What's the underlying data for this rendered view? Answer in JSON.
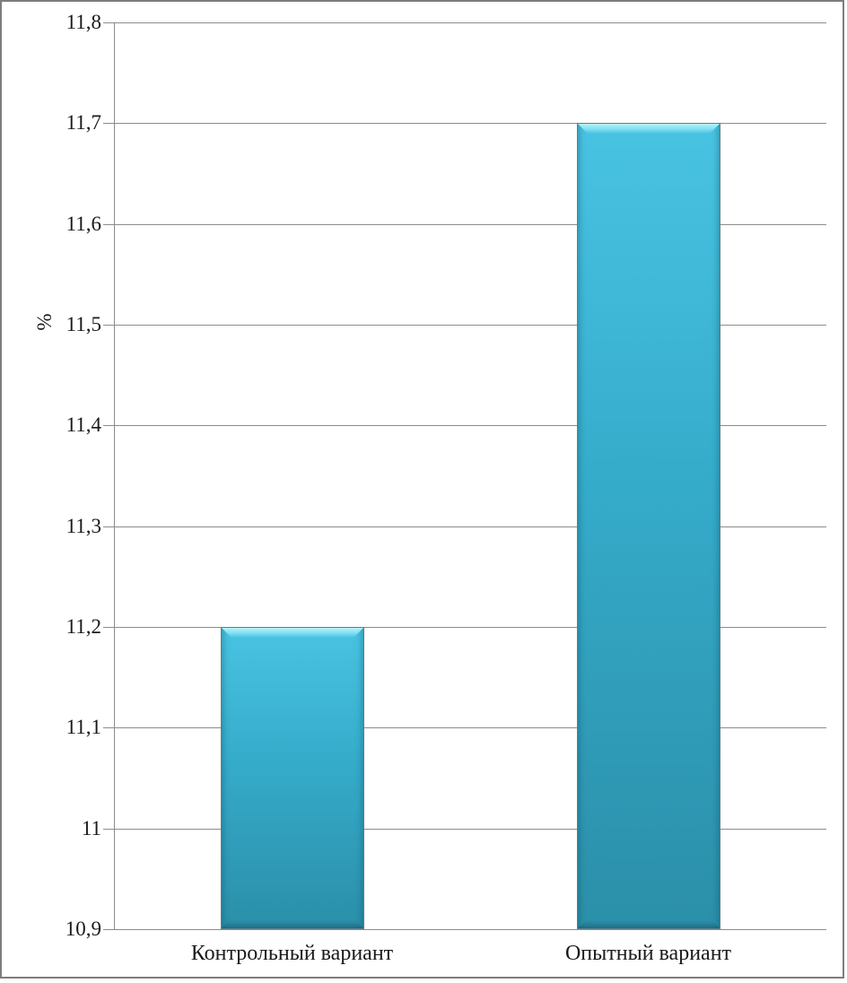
{
  "chart_data": {
    "type": "bar",
    "title": "",
    "xlabel": "",
    "ylabel": "%",
    "categories": [
      "Контрольный вариант",
      "Опытный вариант"
    ],
    "values": [
      11.2,
      11.7
    ],
    "ylim": [
      10.9,
      11.8
    ],
    "ytick_step": 0.1,
    "ytick_labels": [
      "10,9",
      "11",
      "11,1",
      "11,2",
      "11,3",
      "11,4",
      "11,5",
      "11,6",
      "11,7",
      "11,8"
    ],
    "grid": true,
    "legend": "none",
    "colors": {
      "background": "#FFFFFF",
      "frame_border": "#7D7D7D",
      "gridline": "#8C8C8C",
      "axis": "#8C8C8C",
      "text": "#1A1A1A",
      "bar_body_top": "#49C3E2",
      "bar_body_mid": "#35ABCA",
      "bar_body_bottom": "#2B8FA9",
      "bar_bevel_highlight": "#B8F2FC",
      "bar_outline": "#5E7E8A"
    }
  }
}
